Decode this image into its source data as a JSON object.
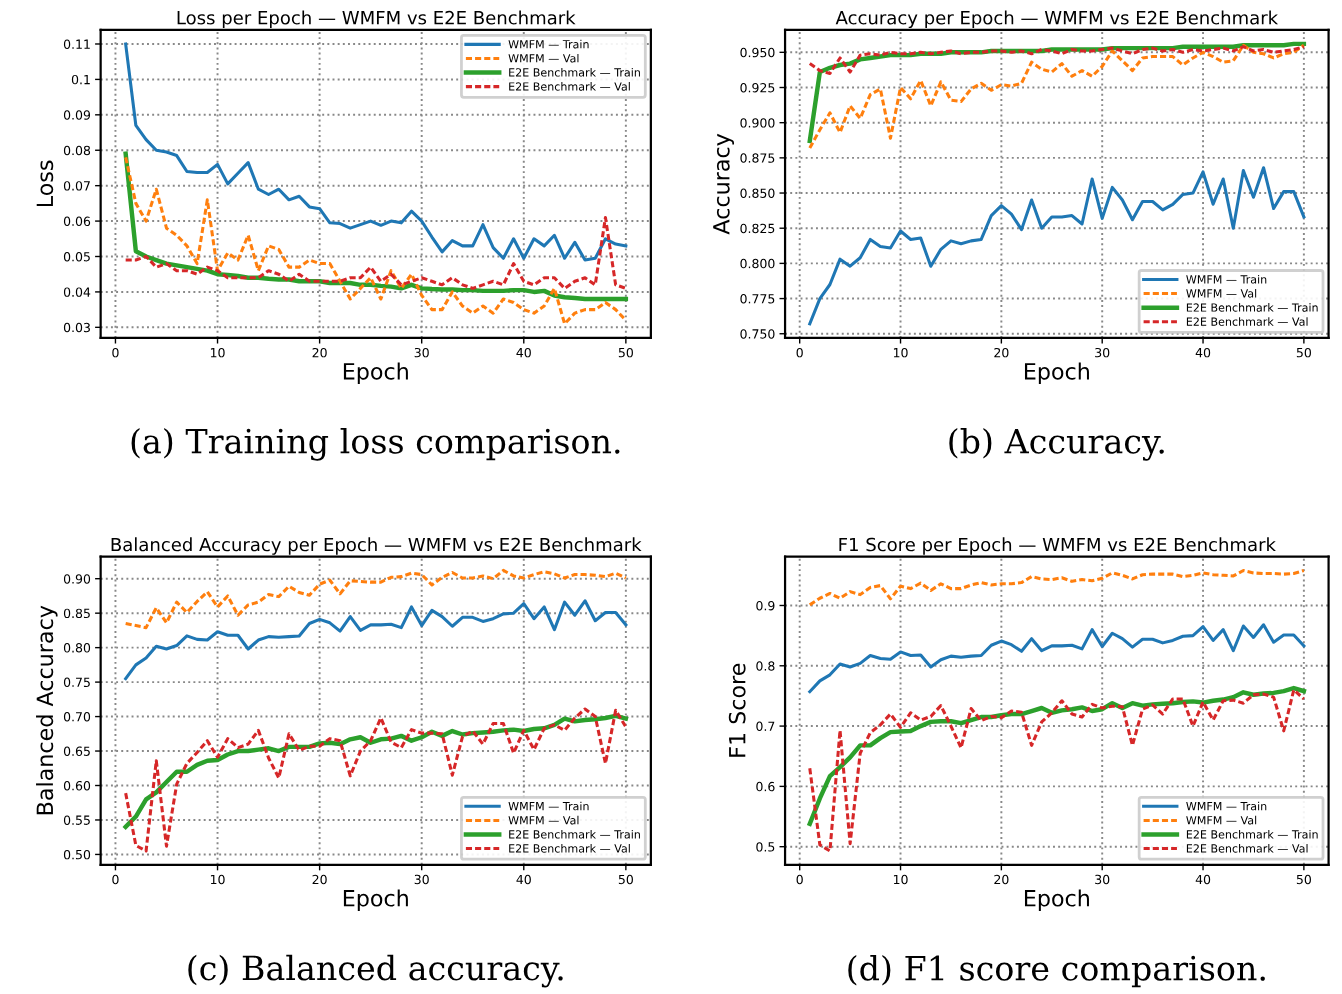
{
  "chart_data": [
    {
      "type": "line",
      "title": "Loss per Epoch — WMFM vs E2E Benchmark",
      "xlabel": "Epoch",
      "ylabel": "Loss",
      "x": [
        1,
        2,
        3,
        4,
        5,
        6,
        7,
        8,
        9,
        10,
        11,
        12,
        13,
        14,
        15,
        16,
        17,
        18,
        19,
        20,
        21,
        22,
        23,
        24,
        25,
        26,
        27,
        28,
        29,
        30,
        31,
        32,
        33,
        34,
        35,
        36,
        37,
        38,
        39,
        40,
        41,
        42,
        43,
        44,
        45,
        46,
        47,
        48,
        49,
        50
      ],
      "series": [
        {
          "name": "WMFM — Train",
          "color": "#1f77b4",
          "line_style": "solid",
          "values": [
            0.11,
            0.087,
            0.083,
            0.08,
            0.0795,
            0.0785,
            0.074,
            0.0737,
            0.0737,
            0.076,
            0.0705,
            0.0735,
            0.0765,
            0.069,
            0.0675,
            0.069,
            0.066,
            0.067,
            0.064,
            0.0635,
            0.0595,
            0.0593,
            0.058,
            0.059,
            0.06,
            0.0588,
            0.06,
            0.0595,
            0.0628,
            0.06,
            0.0555,
            0.0513,
            0.0545,
            0.053,
            0.053,
            0.059,
            0.0525,
            0.0495,
            0.055,
            0.0495,
            0.055,
            0.053,
            0.056,
            0.0495,
            0.054,
            0.049,
            0.0495,
            0.055,
            0.0535,
            0.053
          ]
        },
        {
          "name": "WMFM — Val",
          "color": "#ff7f0e",
          "line_style": "dashed",
          "values": [
            0.078,
            0.065,
            0.06,
            0.069,
            0.058,
            0.056,
            0.053,
            0.048,
            0.066,
            0.046,
            0.051,
            0.049,
            0.056,
            0.046,
            0.053,
            0.052,
            0.047,
            0.047,
            0.049,
            0.048,
            0.048,
            0.043,
            0.038,
            0.041,
            0.044,
            0.038,
            0.046,
            0.041,
            0.045,
            0.039,
            0.035,
            0.035,
            0.04,
            0.036,
            0.034,
            0.036,
            0.034,
            0.038,
            0.037,
            0.035,
            0.034,
            0.036,
            0.041,
            0.031,
            0.034,
            0.035,
            0.035,
            0.037,
            0.035,
            0.032
          ]
        },
        {
          "name": "E2E Benchmark — Train",
          "color": "#2ca02c",
          "line_style": "solid",
          "values": [
            0.079,
            0.0515,
            0.05,
            0.049,
            0.048,
            0.0475,
            0.047,
            0.0465,
            0.046,
            0.045,
            0.0448,
            0.0445,
            0.044,
            0.044,
            0.0437,
            0.0435,
            0.0435,
            0.043,
            0.043,
            0.043,
            0.0425,
            0.0425,
            0.0425,
            0.042,
            0.042,
            0.0417,
            0.0415,
            0.041,
            0.042,
            0.041,
            0.0408,
            0.0407,
            0.0407,
            0.0405,
            0.0405,
            0.0403,
            0.0403,
            0.0403,
            0.0405,
            0.0405,
            0.04,
            0.0403,
            0.039,
            0.0385,
            0.0383,
            0.038,
            0.038,
            0.038,
            0.038,
            0.038
          ]
        },
        {
          "name": "E2E Benchmark — Val",
          "color": "#d62728",
          "line_style": "dashed",
          "values": [
            0.049,
            0.049,
            0.05,
            0.047,
            0.048,
            0.046,
            0.046,
            0.045,
            0.047,
            0.046,
            0.044,
            0.044,
            0.044,
            0.044,
            0.046,
            0.045,
            0.043,
            0.045,
            0.043,
            0.043,
            0.043,
            0.043,
            0.044,
            0.044,
            0.047,
            0.043,
            0.045,
            0.042,
            0.043,
            0.044,
            0.043,
            0.042,
            0.044,
            0.042,
            0.041,
            0.042,
            0.043,
            0.042,
            0.048,
            0.043,
            0.042,
            0.044,
            0.044,
            0.041,
            0.043,
            0.044,
            0.042,
            0.061,
            0.042,
            0.041
          ]
        }
      ],
      "xlim": [
        -1.45,
        52.45
      ],
      "ylim": [
        0.027,
        0.114
      ],
      "xticks": [
        0,
        10,
        20,
        30,
        40,
        50
      ],
      "yticks": [
        0.03,
        0.04,
        0.05,
        0.06,
        0.07,
        0.08,
        0.09,
        0.1,
        0.11
      ],
      "grid": true,
      "legend": "top right",
      "annotations": [
        "(a) Training loss comparison."
      ]
    },
    {
      "type": "line",
      "title": "Accuracy per Epoch — WMFM vs E2E Benchmark",
      "xlabel": "Epoch",
      "ylabel": "Accuracy",
      "x": [
        1,
        2,
        3,
        4,
        5,
        6,
        7,
        8,
        9,
        10,
        11,
        12,
        13,
        14,
        15,
        16,
        17,
        18,
        19,
        20,
        21,
        22,
        23,
        24,
        25,
        26,
        27,
        28,
        29,
        30,
        31,
        32,
        33,
        34,
        35,
        36,
        37,
        38,
        39,
        40,
        41,
        42,
        43,
        44,
        45,
        46,
        47,
        48,
        49,
        50
      ],
      "series": [
        {
          "name": "WMFM — Train",
          "color": "#1f77b4",
          "line_style": "solid",
          "values": [
            0.757,
            0.775,
            0.785,
            0.803,
            0.798,
            0.804,
            0.817,
            0.812,
            0.811,
            0.823,
            0.817,
            0.818,
            0.798,
            0.81,
            0.816,
            0.814,
            0.816,
            0.817,
            0.834,
            0.841,
            0.835,
            0.824,
            0.845,
            0.825,
            0.833,
            0.833,
            0.834,
            0.828,
            0.86,
            0.832,
            0.854,
            0.845,
            0.831,
            0.844,
            0.844,
            0.838,
            0.842,
            0.849,
            0.85,
            0.865,
            0.842,
            0.86,
            0.825,
            0.866,
            0.847,
            0.868,
            0.839,
            0.851,
            0.851,
            0.833
          ]
        },
        {
          "name": "WMFM — Val",
          "color": "#ff7f0e",
          "line_style": "dashed",
          "values": [
            0.882,
            0.895,
            0.907,
            0.893,
            0.912,
            0.903,
            0.92,
            0.924,
            0.889,
            0.925,
            0.917,
            0.93,
            0.912,
            0.929,
            0.916,
            0.915,
            0.924,
            0.928,
            0.923,
            0.927,
            0.926,
            0.928,
            0.943,
            0.938,
            0.936,
            0.942,
            0.933,
            0.937,
            0.933,
            0.94,
            0.951,
            0.944,
            0.937,
            0.946,
            0.947,
            0.947,
            0.947,
            0.941,
            0.946,
            0.95,
            0.947,
            0.943,
            0.944,
            0.955,
            0.95,
            0.949,
            0.946,
            0.949,
            0.95,
            0.955
          ]
        },
        {
          "name": "E2E Benchmark — Train",
          "color": "#2ca02c",
          "line_style": "solid",
          "values": [
            0.887,
            0.936,
            0.939,
            0.941,
            0.942,
            0.945,
            0.946,
            0.947,
            0.948,
            0.948,
            0.948,
            0.949,
            0.949,
            0.949,
            0.95,
            0.95,
            0.95,
            0.95,
            0.951,
            0.951,
            0.951,
            0.951,
            0.951,
            0.951,
            0.952,
            0.952,
            0.952,
            0.952,
            0.952,
            0.952,
            0.953,
            0.953,
            0.953,
            0.953,
            0.953,
            0.953,
            0.953,
            0.954,
            0.954,
            0.954,
            0.954,
            0.954,
            0.954,
            0.955,
            0.955,
            0.955,
            0.955,
            0.955,
            0.956,
            0.956
          ]
        },
        {
          "name": "E2E Benchmark — Val",
          "color": "#d62728",
          "line_style": "dashed",
          "values": [
            0.942,
            0.937,
            0.935,
            0.946,
            0.936,
            0.948,
            0.949,
            0.948,
            0.95,
            0.949,
            0.949,
            0.95,
            0.949,
            0.95,
            0.951,
            0.949,
            0.95,
            0.95,
            0.951,
            0.951,
            0.95,
            0.951,
            0.949,
            0.952,
            0.951,
            0.949,
            0.952,
            0.951,
            0.951,
            0.952,
            0.953,
            0.951,
            0.949,
            0.952,
            0.953,
            0.951,
            0.952,
            0.95,
            0.952,
            0.951,
            0.952,
            0.953,
            0.951,
            0.954,
            0.951,
            0.952,
            0.95,
            0.951,
            0.952,
            0.954
          ]
        }
      ],
      "xlim": [
        -1.45,
        52.45
      ],
      "ylim": [
        0.747,
        0.966
      ],
      "xticks": [
        0,
        10,
        20,
        30,
        40,
        50
      ],
      "yticks": [
        {
          "value": 0.75,
          "label": "0.750"
        },
        {
          "value": 0.775,
          "label": "0.775"
        },
        {
          "value": 0.8,
          "label": "0.800"
        },
        {
          "value": 0.825,
          "label": "0.825"
        },
        {
          "value": 0.85,
          "label": "0.850"
        },
        {
          "value": 0.875,
          "label": "0.875"
        },
        {
          "value": 0.9,
          "label": "0.900"
        },
        {
          "value": 0.925,
          "label": "0.925"
        },
        {
          "value": 0.95,
          "label": "0.950"
        }
      ],
      "grid": true,
      "legend": "bottom right",
      "annotations": [
        "(b) Accuracy."
      ]
    },
    {
      "type": "line",
      "title": "Balanced Accuracy per Epoch — WMFM vs E2E Benchmark",
      "xlabel": "Epoch",
      "ylabel": "Balanced Accuracy",
      "x": [
        1,
        2,
        3,
        4,
        5,
        6,
        7,
        8,
        9,
        10,
        11,
        12,
        13,
        14,
        15,
        16,
        17,
        18,
        19,
        20,
        21,
        22,
        23,
        24,
        25,
        26,
        27,
        28,
        29,
        30,
        31,
        32,
        33,
        34,
        35,
        36,
        37,
        38,
        39,
        40,
        41,
        42,
        43,
        44,
        45,
        46,
        47,
        48,
        49,
        50
      ],
      "series": [
        {
          "name": "WMFM — Train",
          "color": "#1f77b4",
          "line_style": "solid",
          "values": [
            0.755,
            0.775,
            0.785,
            0.802,
            0.798,
            0.803,
            0.817,
            0.812,
            0.811,
            0.823,
            0.818,
            0.818,
            0.798,
            0.811,
            0.816,
            0.815,
            0.816,
            0.817,
            0.835,
            0.841,
            0.836,
            0.824,
            0.845,
            0.825,
            0.833,
            0.833,
            0.834,
            0.829,
            0.859,
            0.832,
            0.854,
            0.845,
            0.831,
            0.844,
            0.844,
            0.838,
            0.842,
            0.849,
            0.85,
            0.864,
            0.842,
            0.859,
            0.826,
            0.866,
            0.847,
            0.868,
            0.839,
            0.851,
            0.851,
            0.833
          ]
        },
        {
          "name": "WMFM — Val",
          "color": "#ff7f0e",
          "line_style": "dashed",
          "values": [
            0.835,
            0.832,
            0.829,
            0.858,
            0.836,
            0.866,
            0.851,
            0.867,
            0.881,
            0.859,
            0.875,
            0.847,
            0.862,
            0.866,
            0.877,
            0.874,
            0.889,
            0.88,
            0.876,
            0.892,
            0.898,
            0.878,
            0.897,
            0.896,
            0.895,
            0.895,
            0.902,
            0.903,
            0.908,
            0.906,
            0.891,
            0.902,
            0.909,
            0.901,
            0.901,
            0.904,
            0.9,
            0.912,
            0.904,
            0.901,
            0.906,
            0.91,
            0.907,
            0.901,
            0.906,
            0.906,
            0.905,
            0.903,
            0.908,
            0.901
          ]
        },
        {
          "name": "E2E Benchmark — Train",
          "color": "#2ca02c",
          "line_style": "solid",
          "values": [
            0.54,
            0.555,
            0.58,
            0.59,
            0.605,
            0.62,
            0.62,
            0.63,
            0.636,
            0.637,
            0.645,
            0.65,
            0.65,
            0.652,
            0.654,
            0.65,
            0.656,
            0.656,
            0.656,
            0.661,
            0.662,
            0.66,
            0.667,
            0.67,
            0.662,
            0.667,
            0.668,
            0.672,
            0.665,
            0.67,
            0.678,
            0.672,
            0.679,
            0.674,
            0.676,
            0.677,
            0.678,
            0.68,
            0.681,
            0.679,
            0.682,
            0.683,
            0.688,
            0.697,
            0.693,
            0.695,
            0.696,
            0.698,
            0.701,
            0.697
          ]
        },
        {
          "name": "E2E Benchmark — Val",
          "color": "#d62728",
          "line_style": "dashed",
          "values": [
            0.589,
            0.513,
            0.505,
            0.636,
            0.512,
            0.602,
            0.632,
            0.648,
            0.665,
            0.641,
            0.668,
            0.655,
            0.66,
            0.68,
            0.64,
            0.611,
            0.675,
            0.651,
            0.657,
            0.657,
            0.668,
            0.665,
            0.614,
            0.65,
            0.665,
            0.698,
            0.663,
            0.655,
            0.681,
            0.676,
            0.676,
            0.675,
            0.615,
            0.671,
            0.679,
            0.66,
            0.69,
            0.69,
            0.647,
            0.68,
            0.652,
            0.683,
            0.688,
            0.68,
            0.698,
            0.711,
            0.7,
            0.632,
            0.709,
            0.685
          ]
        }
      ],
      "xlim": [
        -1.45,
        52.45
      ],
      "ylim": [
        0.485,
        0.932
      ],
      "xticks": [
        0,
        10,
        20,
        30,
        40,
        50
      ],
      "yticks": [
        {
          "value": 0.5,
          "label": "0.50"
        },
        {
          "value": 0.55,
          "label": "0.55"
        },
        {
          "value": 0.6,
          "label": "0.60"
        },
        {
          "value": 0.65,
          "label": "0.65"
        },
        {
          "value": 0.7,
          "label": "0.70"
        },
        {
          "value": 0.75,
          "label": "0.75"
        },
        {
          "value": 0.8,
          "label": "0.80"
        },
        {
          "value": 0.85,
          "label": "0.85"
        },
        {
          "value": 0.9,
          "label": "0.90"
        }
      ],
      "grid": true,
      "legend": "bottom right",
      "annotations": [
        "(c) Balanced accuracy."
      ]
    },
    {
      "type": "line",
      "title": "F1 Score per Epoch — WMFM vs E2E Benchmark",
      "xlabel": "Epoch",
      "ylabel": "F1 Score",
      "x": [
        1,
        2,
        3,
        4,
        5,
        6,
        7,
        8,
        9,
        10,
        11,
        12,
        13,
        14,
        15,
        16,
        17,
        18,
        19,
        20,
        21,
        22,
        23,
        24,
        25,
        26,
        27,
        28,
        29,
        30,
        31,
        32,
        33,
        34,
        35,
        36,
        37,
        38,
        39,
        40,
        41,
        42,
        43,
        44,
        45,
        46,
        47,
        48,
        49,
        50
      ],
      "series": [
        {
          "name": "WMFM — Train",
          "color": "#1f77b4",
          "line_style": "solid",
          "values": [
            0.757,
            0.775,
            0.785,
            0.803,
            0.798,
            0.804,
            0.817,
            0.812,
            0.811,
            0.823,
            0.817,
            0.818,
            0.798,
            0.81,
            0.816,
            0.814,
            0.816,
            0.817,
            0.834,
            0.841,
            0.835,
            0.824,
            0.845,
            0.825,
            0.833,
            0.833,
            0.834,
            0.828,
            0.86,
            0.832,
            0.854,
            0.845,
            0.831,
            0.844,
            0.844,
            0.838,
            0.842,
            0.849,
            0.85,
            0.865,
            0.842,
            0.86,
            0.825,
            0.866,
            0.847,
            0.868,
            0.839,
            0.851,
            0.851,
            0.833
          ]
        },
        {
          "name": "WMFM — Val",
          "color": "#ff7f0e",
          "line_style": "dashed",
          "values": [
            0.901,
            0.912,
            0.92,
            0.912,
            0.923,
            0.918,
            0.93,
            0.933,
            0.911,
            0.932,
            0.928,
            0.937,
            0.925,
            0.936,
            0.928,
            0.928,
            0.934,
            0.938,
            0.934,
            0.936,
            0.936,
            0.938,
            0.948,
            0.944,
            0.943,
            0.946,
            0.94,
            0.943,
            0.941,
            0.945,
            0.954,
            0.95,
            0.944,
            0.951,
            0.952,
            0.952,
            0.952,
            0.948,
            0.95,
            0.954,
            0.951,
            0.95,
            0.949,
            0.958,
            0.954,
            0.953,
            0.953,
            0.952,
            0.953,
            0.958
          ]
        },
        {
          "name": "E2E Benchmark — Train",
          "color": "#2ca02c",
          "line_style": "solid",
          "values": [
            0.538,
            0.58,
            0.617,
            0.632,
            0.648,
            0.668,
            0.668,
            0.68,
            0.69,
            0.691,
            0.692,
            0.7,
            0.707,
            0.708,
            0.708,
            0.705,
            0.71,
            0.715,
            0.715,
            0.718,
            0.72,
            0.72,
            0.725,
            0.73,
            0.722,
            0.726,
            0.728,
            0.731,
            0.725,
            0.728,
            0.738,
            0.73,
            0.738,
            0.734,
            0.736,
            0.737,
            0.738,
            0.74,
            0.741,
            0.739,
            0.742,
            0.744,
            0.748,
            0.756,
            0.752,
            0.754,
            0.755,
            0.758,
            0.763,
            0.758
          ]
        },
        {
          "name": "E2E Benchmark — Val",
          "color": "#d62728",
          "line_style": "dashed",
          "values": [
            0.63,
            0.503,
            0.493,
            0.693,
            0.505,
            0.655,
            0.689,
            0.702,
            0.72,
            0.698,
            0.722,
            0.71,
            0.716,
            0.734,
            0.7,
            0.664,
            0.729,
            0.709,
            0.716,
            0.714,
            0.725,
            0.723,
            0.668,
            0.707,
            0.722,
            0.742,
            0.72,
            0.715,
            0.736,
            0.73,
            0.733,
            0.732,
            0.668,
            0.728,
            0.735,
            0.72,
            0.745,
            0.745,
            0.7,
            0.74,
            0.71,
            0.742,
            0.743,
            0.738,
            0.752,
            0.753,
            0.748,
            0.692,
            0.76,
            0.745
          ]
        }
      ],
      "xlim": [
        -1.45,
        52.45
      ],
      "ylim": [
        0.47,
        0.981
      ],
      "xticks": [
        0,
        10,
        20,
        30,
        40,
        50
      ],
      "yticks": [
        0.5,
        0.6,
        0.7,
        0.8,
        0.9
      ],
      "grid": true,
      "legend": "bottom right",
      "annotations": [
        "(d) F1 score comparison."
      ]
    }
  ]
}
